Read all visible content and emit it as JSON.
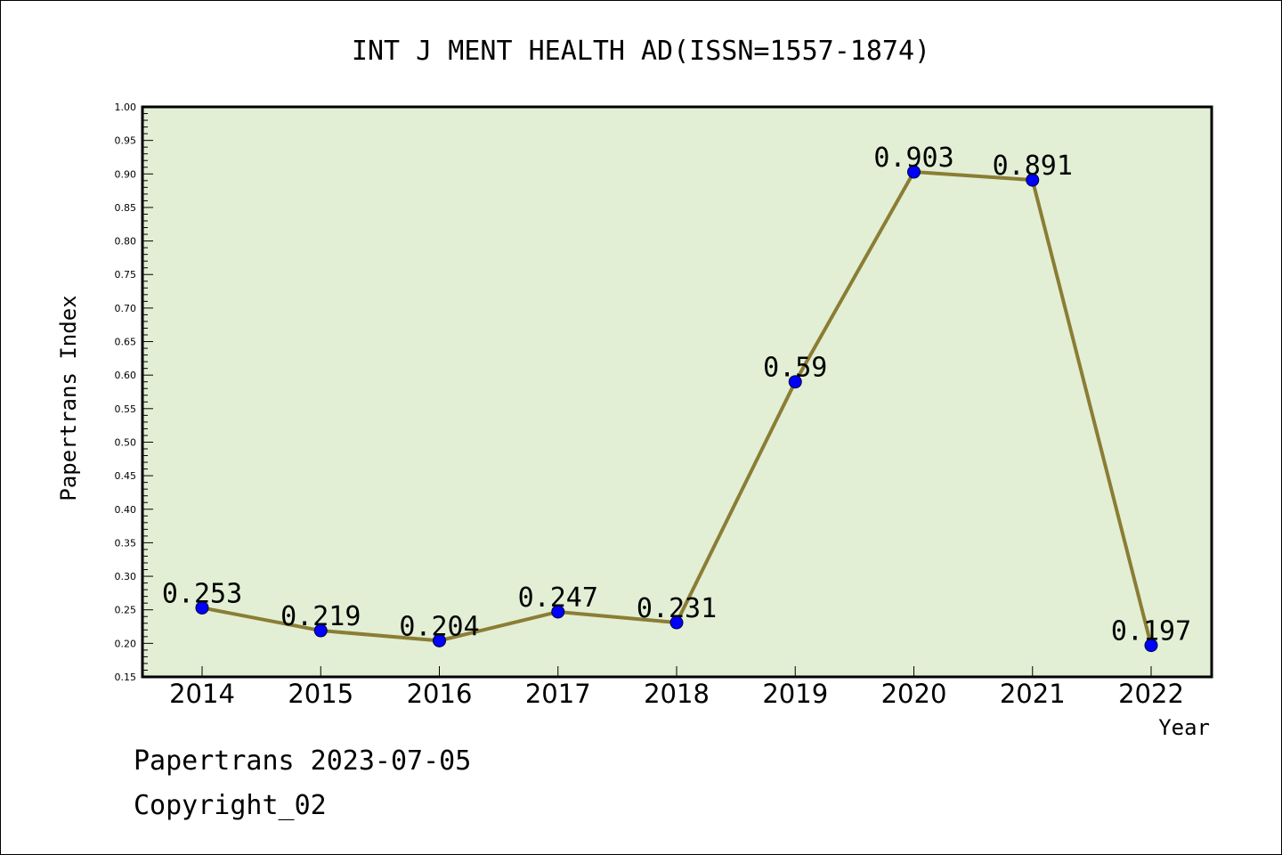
{
  "chart_data": {
    "type": "line",
    "title": "INT J MENT HEALTH AD(ISSN=1557-1874)",
    "xlabel": "Year",
    "ylabel": "Papertrans Index",
    "categories": [
      "2014",
      "2015",
      "2016",
      "2017",
      "2018",
      "2019",
      "2020",
      "2021",
      "2022"
    ],
    "series": [
      {
        "values": [
          0.253,
          0.219,
          0.204,
          0.247,
          0.231,
          0.59,
          0.903,
          0.891,
          0.197
        ],
        "labels": [
          "0.253",
          "0.219",
          "0.204",
          "0.247",
          "0.231",
          "0.59",
          "0.903",
          "0.891",
          "0.197"
        ]
      }
    ],
    "ylim": [
      0.15,
      1.0
    ],
    "yticks": [
      "0.15",
      "0.20",
      "0.25",
      "0.30",
      "0.35",
      "0.40",
      "0.45",
      "0.50",
      "0.55",
      "0.60",
      "0.65",
      "0.70",
      "0.75",
      "0.80",
      "0.85",
      "0.90",
      "0.95",
      "1.00"
    ],
    "grid": false,
    "colors": {
      "plot_background": "#e2efd5",
      "line": "#8b7d35",
      "marker": "#0000ff"
    }
  },
  "footer": {
    "line1": "Papertrans 2023-07-05",
    "line2": "Copyright_02"
  }
}
